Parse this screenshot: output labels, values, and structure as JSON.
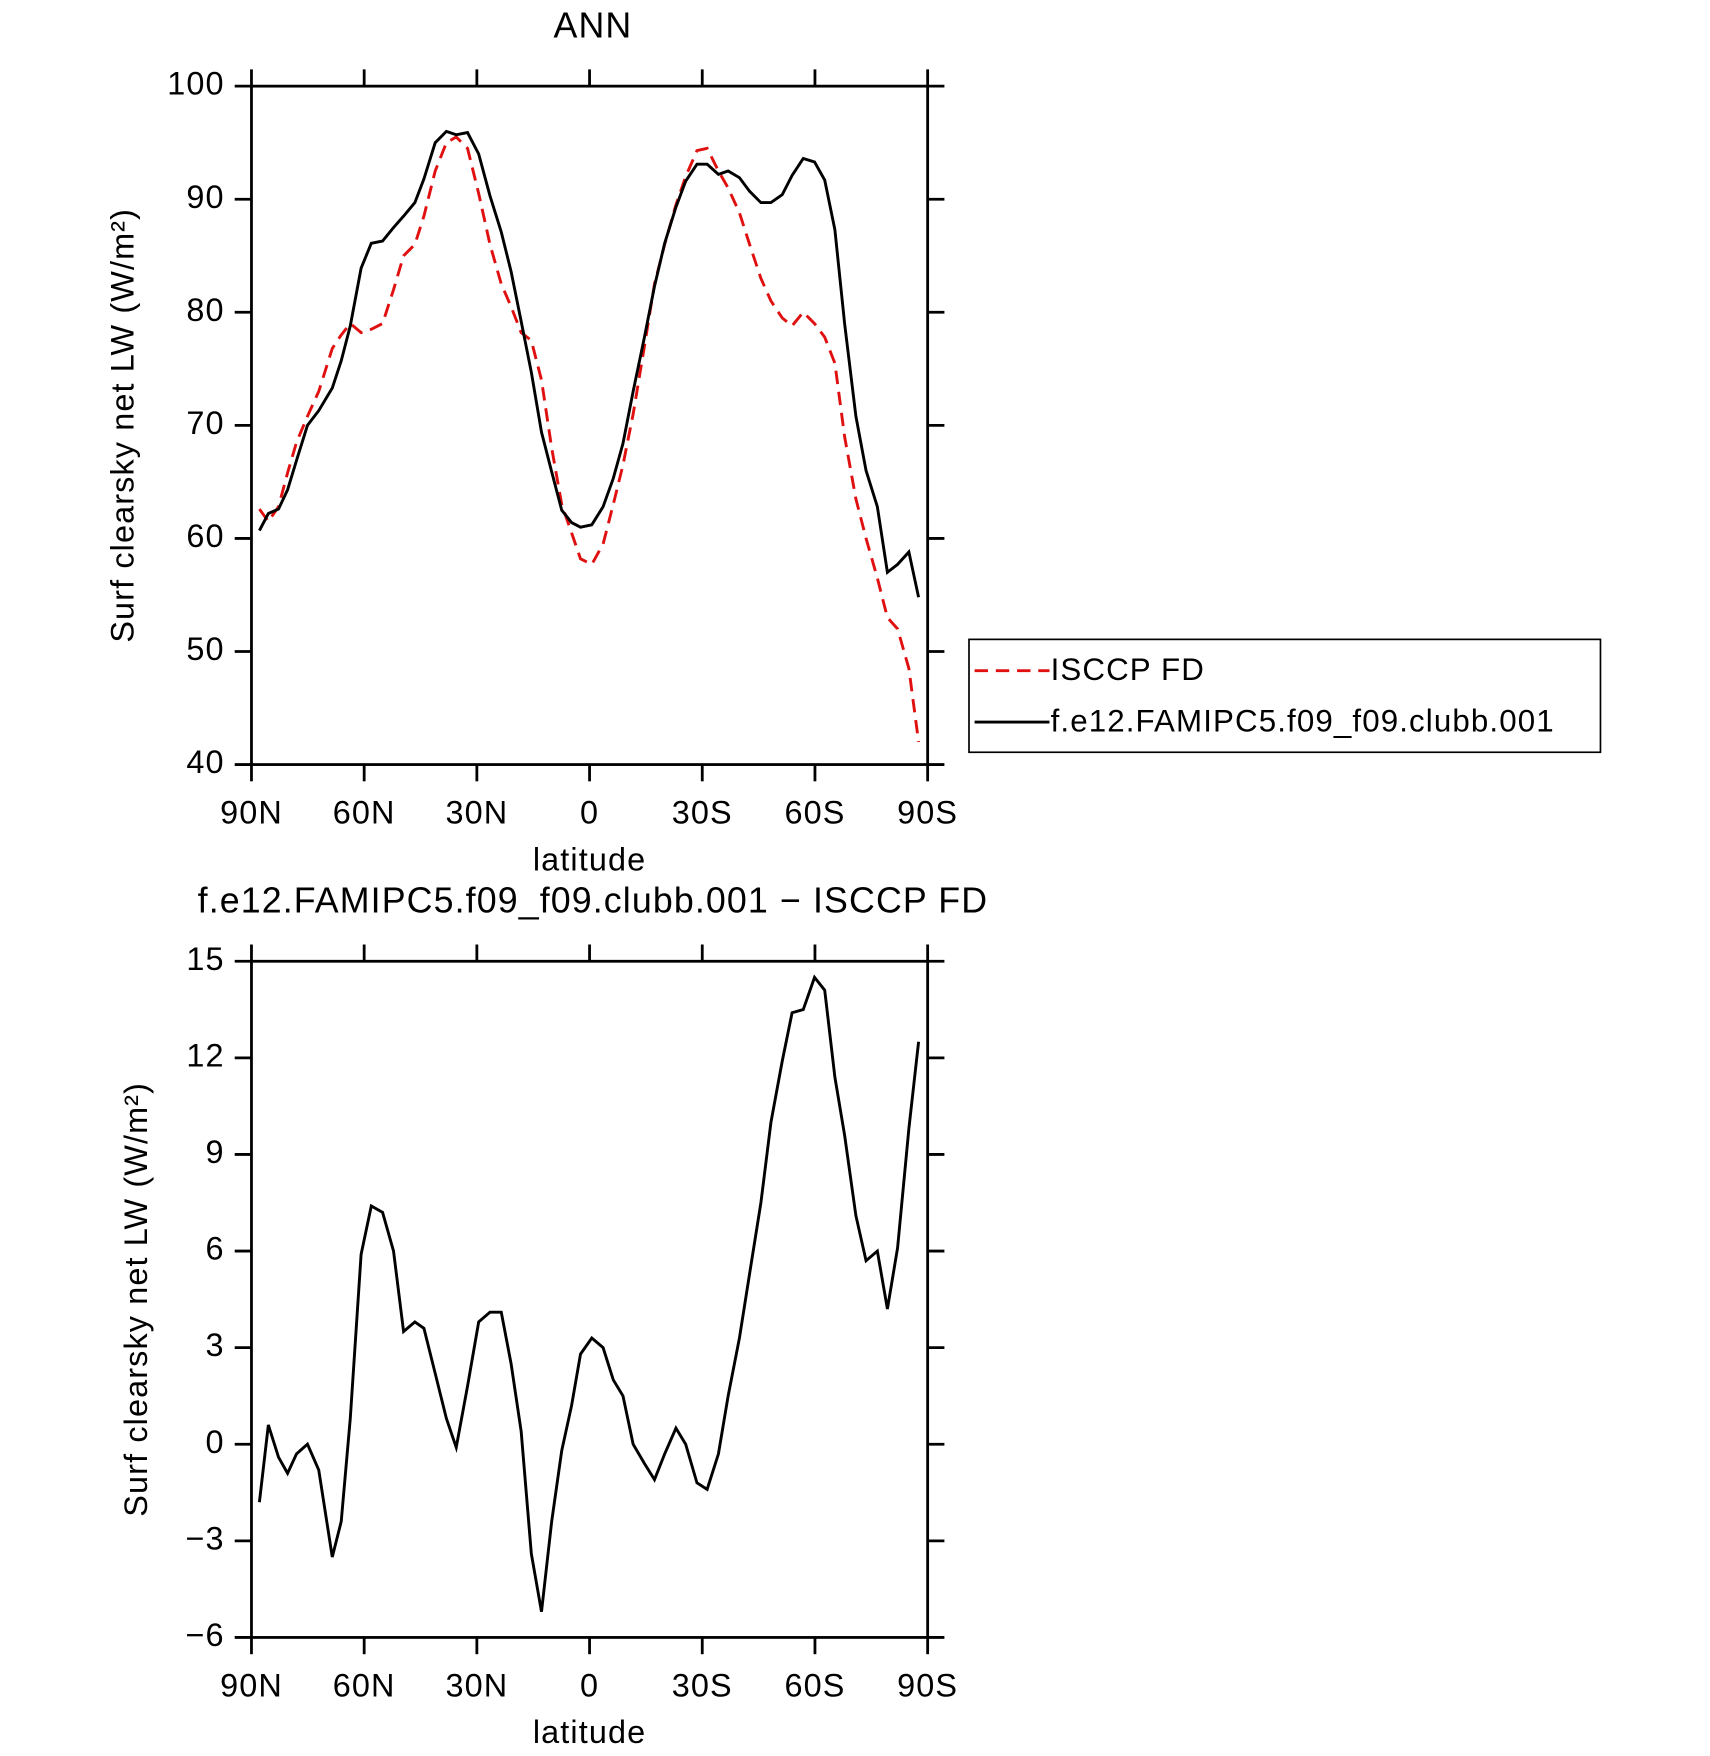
{
  "chart_data": [
    {
      "type": "line",
      "title": "ANN",
      "xlabel": "latitude",
      "ylabel": "Surf clearsky net LW (W/m²)",
      "x": [
        87.9,
        85.5,
        82.8,
        80.4,
        78.0,
        75.1,
        72.1,
        68.5,
        66.1,
        63.7,
        60.8,
        58.1,
        55.1,
        52.2,
        49.5,
        46.5,
        44.1,
        41.1,
        38.1,
        35.5,
        32.5,
        29.5,
        26.5,
        23.5,
        20.9,
        18.2,
        15.5,
        12.8,
        10.1,
        7.4,
        4.8,
        2.4,
        -0.6,
        -3.6,
        -6.3,
        -8.9,
        -11.6,
        -14.6,
        -17.3,
        -20.0,
        -23.0,
        -25.6,
        -28.6,
        -31.3,
        -34.3,
        -36.9,
        -39.9,
        -42.6,
        -45.6,
        -48.3,
        -51.3,
        -53.9,
        -56.9,
        -59.9,
        -62.6,
        -65.3,
        -67.9,
        -70.9,
        -73.6,
        -76.6,
        -79.3,
        -82.0,
        -85.0,
        -87.6
      ],
      "series": [
        {
          "name": "ISCCP FD",
          "color": "#e01010",
          "linestyle": "dashed",
          "values": [
            62.6,
            61.5,
            62.8,
            65.8,
            68.5,
            70.8,
            73.0,
            76.8,
            78.0,
            79.0,
            78.2,
            78.5,
            79.0,
            82.0,
            85.0,
            86.0,
            88.5,
            92.5,
            95.0,
            95.5,
            94.5,
            90.5,
            86.0,
            82.5,
            80.5,
            78.2,
            77.5,
            74.0,
            68.0,
            63.0,
            60.5,
            58.2,
            57.7,
            59.5,
            63.0,
            66.5,
            71.0,
            77.0,
            82.5,
            86.0,
            89.5,
            92.0,
            94.3,
            94.5,
            92.5,
            91.0,
            88.8,
            86.0,
            83.0,
            81.0,
            79.5,
            78.8,
            80.0,
            79.0,
            77.8,
            75.5,
            69.0,
            63.5,
            60.0,
            56.5,
            53.0,
            52.0,
            48.5,
            42.0
          ]
        },
        {
          "name": "f.e12.FAMIPC5.f09_f09.clubb.001",
          "color": "#000000",
          "linestyle": "solid",
          "values": [
            60.7,
            62.2,
            62.6,
            64.3,
            66.9,
            70.0,
            71.3,
            73.3,
            75.7,
            78.8,
            83.9,
            86.1,
            86.3,
            87.5,
            88.5,
            89.7,
            91.8,
            95.0,
            96.0,
            95.7,
            95.9,
            94.0,
            90.3,
            87.1,
            83.6,
            79.2,
            74.7,
            69.4,
            65.9,
            62.5,
            61.4,
            61.0,
            61.2,
            62.8,
            65.3,
            68.4,
            73.0,
            77.8,
            82.3,
            86.1,
            89.3,
            91.6,
            93.1,
            93.1,
            92.2,
            92.5,
            91.9,
            90.7,
            89.7,
            89.7,
            90.4,
            92.1,
            93.6,
            93.3,
            91.7,
            87.3,
            79.0,
            70.8,
            66.0,
            62.8,
            57.0,
            57.7,
            58.8,
            54.8
          ]
        }
      ],
      "xlim": [
        90,
        -90
      ],
      "xticks": [
        {
          "value": 90,
          "label": "90N"
        },
        {
          "value": 60,
          "label": "60N"
        },
        {
          "value": 30,
          "label": "30N"
        },
        0,
        {
          "value": -30,
          "label": "30S"
        },
        {
          "value": -60,
          "label": "60S"
        },
        {
          "value": -90,
          "label": "90S"
        }
      ],
      "ylim": [
        40,
        100
      ],
      "yticks": [
        40,
        50,
        60,
        70,
        80,
        90,
        100
      ],
      "legend": "outside-right"
    },
    {
      "type": "line",
      "title": "f.e12.FAMIPC5.f09_f09.clubb.001 − ISCCP FD",
      "xlabel": "latitude",
      "ylabel": "Surf clearsky net LW (W/m²)",
      "x": [
        87.9,
        85.5,
        82.8,
        80.4,
        78.0,
        75.1,
        72.1,
        68.5,
        66.1,
        63.7,
        60.8,
        58.1,
        55.1,
        52.2,
        49.5,
        46.5,
        44.1,
        41.1,
        38.1,
        35.5,
        32.5,
        29.5,
        26.5,
        23.5,
        20.9,
        18.2,
        15.5,
        12.8,
        10.1,
        7.4,
        4.8,
        2.4,
        -0.6,
        -3.6,
        -6.3,
        -8.9,
        -11.6,
        -14.6,
        -17.3,
        -20.0,
        -23.0,
        -25.6,
        -28.6,
        -31.3,
        -34.3,
        -36.9,
        -39.9,
        -42.6,
        -45.6,
        -48.3,
        -51.3,
        -53.9,
        -56.9,
        -59.9,
        -62.6,
        -65.3,
        -67.9,
        -70.9,
        -73.6,
        -76.6,
        -79.3,
        -82.0,
        -85.0,
        -87.6
      ],
      "color": "#000000",
      "values": [
        -1.8,
        0.6,
        -0.4,
        -0.9,
        -0.3,
        0.0,
        -0.8,
        -3.5,
        -2.4,
        0.8,
        5.9,
        7.4,
        7.2,
        6.0,
        3.5,
        3.8,
        3.6,
        2.2,
        0.8,
        -0.1,
        1.8,
        3.8,
        4.1,
        4.1,
        2.5,
        0.4,
        -3.4,
        -5.2,
        -2.4,
        -0.2,
        1.2,
        2.8,
        3.3,
        3.0,
        2.0,
        1.5,
        0.0,
        -0.6,
        -1.1,
        -0.3,
        0.5,
        0.0,
        -1.2,
        -1.4,
        -0.3,
        1.5,
        3.3,
        5.3,
        7.5,
        10.0,
        11.9,
        13.4,
        13.5,
        14.5,
        14.1,
        11.4,
        9.6,
        7.1,
        5.7,
        6.0,
        4.2,
        6.1,
        9.8,
        12.5
      ],
      "xlim": [
        90,
        -90
      ],
      "xticks": [
        {
          "value": 90,
          "label": "90N"
        },
        {
          "value": 60,
          "label": "60N"
        },
        {
          "value": 30,
          "label": "30N"
        },
        0,
        {
          "value": -30,
          "label": "30S"
        },
        {
          "value": -60,
          "label": "60S"
        },
        {
          "value": -90,
          "label": "90S"
        }
      ],
      "ylim": [
        -6,
        15
      ],
      "yticks": [
        {
          "value": -6,
          "label": "−6"
        },
        {
          "value": -3,
          "label": "−3"
        },
        0,
        3,
        6,
        9,
        12,
        15
      ]
    }
  ]
}
